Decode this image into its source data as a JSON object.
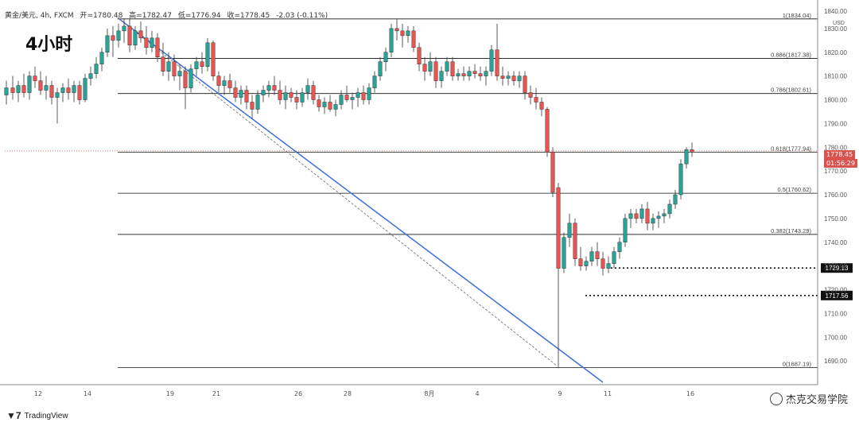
{
  "header": {
    "symbol": "黄金/美元, 4h, FXCM",
    "open": "开=1780.48",
    "high": "高=1782.47",
    "low": "低=1776.94",
    "close": "收=1778.45",
    "change": "-2.03 (-0.11%)"
  },
  "timeframe_label": "4小时",
  "currency": "USD",
  "logo_text": "TradingView",
  "watermark_text": "杰克交易学院",
  "current_price": {
    "value": "1778.45",
    "countdown": "01:56:29",
    "color": "#d9534f"
  },
  "chart_data": {
    "type": "candlestick",
    "ylim": [
      1680,
      1840
    ],
    "y_ticks": [
      1690,
      1700,
      1710,
      1720,
      1730,
      1740,
      1750,
      1760,
      1770,
      1780,
      1790,
      1800,
      1810,
      1820,
      1830
    ],
    "y_tick_labels_top": [
      "1840.00"
    ],
    "x_tick_labels": [
      {
        "label": "12",
        "pos": 48
      },
      {
        "label": "14",
        "pos": 110
      },
      {
        "label": "19",
        "pos": 214
      },
      {
        "label": "21",
        "pos": 272
      },
      {
        "label": "26",
        "pos": 375
      },
      {
        "label": "28",
        "pos": 437
      },
      {
        "label": "8月",
        "pos": 540
      },
      {
        "label": "4",
        "pos": 600
      },
      {
        "label": "9",
        "pos": 704
      },
      {
        "label": "11",
        "pos": 764
      },
      {
        "label": "16",
        "pos": 868
      }
    ],
    "fib_levels": [
      {
        "label": "1(1834.04)",
        "value": 1834.04
      },
      {
        "label": "0.886(1817.38)",
        "value": 1817.38
      },
      {
        "label": "0.786(1802.61)",
        "value": 1802.61
      },
      {
        "label": "0.618(1777.94)",
        "value": 1777.94
      },
      {
        "label": "0.5(1760.62)",
        "value": 1760.62
      },
      {
        "label": "0.382(1743.29)",
        "value": 1743.29
      },
      {
        "label": "0(1687.19)",
        "value": 1687.19
      }
    ],
    "support_levels": [
      {
        "label": "1729.13",
        "value": 1729.13
      },
      {
        "label": "1717.56",
        "value": 1717.56
      }
    ],
    "trendline": {
      "from": [
        1834.5,
        148
      ],
      "to": [
        1681,
        758
      ]
    },
    "dashed_trendline": {
      "from": [
        1834.5,
        148
      ],
      "to": [
        1688,
        700
      ]
    },
    "colors": {
      "up": "#26a69a",
      "down": "#ef5350",
      "trend": "#3b6fd8",
      "support": "#111111"
    },
    "candles": [
      [
        8,
        1802,
        1808,
        1798,
        1805
      ],
      [
        16,
        1805,
        1810,
        1800,
        1803
      ],
      [
        23,
        1803,
        1808,
        1799,
        1806
      ],
      [
        30,
        1806,
        1811,
        1801,
        1803
      ],
      [
        37,
        1803,
        1812,
        1800,
        1810
      ],
      [
        44,
        1810,
        1814,
        1805,
        1808
      ],
      [
        51,
        1808,
        1812,
        1802,
        1804
      ],
      [
        58,
        1804,
        1810,
        1800,
        1806
      ],
      [
        65,
        1806,
        1808,
        1798,
        1801
      ],
      [
        72,
        1801,
        1805,
        1790,
        1803
      ],
      [
        79,
        1803,
        1807,
        1799,
        1805
      ],
      [
        86,
        1805,
        1809,
        1800,
        1803
      ],
      [
        93,
        1803,
        1808,
        1799,
        1806
      ],
      [
        100,
        1806,
        1808,
        1798,
        1800
      ],
      [
        107,
        1800,
        1811,
        1799,
        1809
      ],
      [
        114,
        1809,
        1814,
        1806,
        1811
      ],
      [
        121,
        1811,
        1818,
        1809,
        1815
      ],
      [
        128,
        1815,
        1822,
        1812,
        1820
      ],
      [
        135,
        1820,
        1830,
        1818,
        1827
      ],
      [
        142,
        1827,
        1831,
        1818,
        1825
      ],
      [
        149,
        1825,
        1832,
        1822,
        1829
      ],
      [
        156,
        1829,
        1834,
        1824,
        1831
      ],
      [
        163,
        1831,
        1834,
        1820,
        1823
      ],
      [
        170,
        1823,
        1831,
        1821,
        1829
      ],
      [
        177,
        1829,
        1833,
        1824,
        1826
      ],
      [
        184,
        1826,
        1831,
        1819,
        1822
      ],
      [
        191,
        1822,
        1829,
        1820,
        1826
      ],
      [
        198,
        1826,
        1828,
        1816,
        1818
      ],
      [
        205,
        1818,
        1824,
        1810,
        1812
      ],
      [
        212,
        1812,
        1820,
        1808,
        1816
      ],
      [
        219,
        1816,
        1819,
        1808,
        1810
      ],
      [
        226,
        1810,
        1815,
        1804,
        1812
      ],
      [
        233,
        1812,
        1814,
        1796,
        1805
      ],
      [
        240,
        1805,
        1815,
        1803,
        1813
      ],
      [
        247,
        1813,
        1818,
        1810,
        1816
      ],
      [
        254,
        1816,
        1820,
        1811,
        1814
      ],
      [
        261,
        1814,
        1826,
        1812,
        1824
      ],
      [
        268,
        1824,
        1825,
        1808,
        1810
      ],
      [
        275,
        1810,
        1812,
        1803,
        1806
      ],
      [
        282,
        1806,
        1810,
        1802,
        1808
      ],
      [
        289,
        1808,
        1811,
        1803,
        1805
      ],
      [
        296,
        1805,
        1808,
        1799,
        1801
      ],
      [
        303,
        1801,
        1806,
        1798,
        1804
      ],
      [
        310,
        1804,
        1806,
        1796,
        1799
      ],
      [
        317,
        1799,
        1802,
        1792,
        1796
      ],
      [
        324,
        1796,
        1804,
        1794,
        1802
      ],
      [
        331,
        1802,
        1806,
        1799,
        1804
      ],
      [
        338,
        1804,
        1808,
        1801,
        1806
      ],
      [
        345,
        1806,
        1810,
        1802,
        1804
      ],
      [
        352,
        1804,
        1808,
        1798,
        1800
      ],
      [
        359,
        1800,
        1806,
        1796,
        1803
      ],
      [
        366,
        1803,
        1805,
        1799,
        1801
      ],
      [
        373,
        1801,
        1804,
        1796,
        1799
      ],
      [
        380,
        1799,
        1805,
        1797,
        1803
      ],
      [
        387,
        1803,
        1809,
        1800,
        1806
      ],
      [
        394,
        1806,
        1808,
        1798,
        1800
      ],
      [
        401,
        1800,
        1802,
        1795,
        1797
      ],
      [
        408,
        1797,
        1801,
        1794,
        1799
      ],
      [
        415,
        1799,
        1802,
        1795,
        1796
      ],
      [
        422,
        1796,
        1800,
        1793,
        1798
      ],
      [
        429,
        1798,
        1804,
        1796,
        1802
      ],
      [
        436,
        1802,
        1806,
        1799,
        1800
      ],
      [
        443,
        1800,
        1803,
        1796,
        1801
      ],
      [
        450,
        1801,
        1805,
        1797,
        1803
      ],
      [
        457,
        1803,
        1806,
        1798,
        1800
      ],
      [
        464,
        1800,
        1807,
        1798,
        1805
      ],
      [
        471,
        1805,
        1812,
        1803,
        1810
      ],
      [
        478,
        1810,
        1818,
        1808,
        1816
      ],
      [
        485,
        1816,
        1822,
        1812,
        1820
      ],
      [
        492,
        1820,
        1832,
        1818,
        1830
      ],
      [
        499,
        1830,
        1834,
        1825,
        1829
      ],
      [
        506,
        1829,
        1832,
        1822,
        1827
      ],
      [
        513,
        1827,
        1831,
        1824,
        1829
      ],
      [
        520,
        1829,
        1831,
        1820,
        1822
      ],
      [
        527,
        1822,
        1824,
        1812,
        1815
      ],
      [
        534,
        1815,
        1818,
        1808,
        1812
      ],
      [
        541,
        1812,
        1820,
        1810,
        1816
      ],
      [
        548,
        1816,
        1818,
        1805,
        1808
      ],
      [
        555,
        1808,
        1814,
        1805,
        1812
      ],
      [
        562,
        1812,
        1818,
        1810,
        1816
      ],
      [
        569,
        1816,
        1818,
        1808,
        1810
      ],
      [
        576,
        1810,
        1813,
        1808,
        1811
      ],
      [
        583,
        1811,
        1814,
        1808,
        1810
      ],
      [
        590,
        1810,
        1814,
        1808,
        1812
      ],
      [
        597,
        1812,
        1815,
        1809,
        1811
      ],
      [
        604,
        1811,
        1814,
        1808,
        1810
      ],
      [
        611,
        1810,
        1814,
        1806,
        1812
      ],
      [
        618,
        1812,
        1823,
        1810,
        1821
      ],
      [
        625,
        1821,
        1832,
        1808,
        1810
      ],
      [
        632,
        1810,
        1814,
        1806,
        1809
      ],
      [
        639,
        1809,
        1812,
        1806,
        1810
      ],
      [
        646,
        1810,
        1812,
        1806,
        1808
      ],
      [
        653,
        1808,
        1812,
        1805,
        1810
      ],
      [
        660,
        1810,
        1812,
        1800,
        1803
      ],
      [
        667,
        1803,
        1806,
        1798,
        1801
      ],
      [
        674,
        1801,
        1805,
        1796,
        1799
      ],
      [
        681,
        1799,
        1801,
        1793,
        1796
      ],
      [
        688,
        1796,
        1797,
        1776,
        1778
      ],
      [
        695,
        1778,
        1780,
        1759,
        1761
      ],
      [
        702,
        1763,
        1765,
        1687,
        1729
      ],
      [
        709,
        1729,
        1744,
        1727,
        1742
      ],
      [
        716,
        1742,
        1752,
        1738,
        1748
      ],
      [
        723,
        1748,
        1750,
        1730,
        1733
      ],
      [
        730,
        1733,
        1738,
        1728,
        1730
      ],
      [
        737,
        1730,
        1734,
        1728,
        1732
      ],
      [
        744,
        1732,
        1738,
        1730,
        1736
      ],
      [
        751,
        1736,
        1740,
        1730,
        1733
      ],
      [
        758,
        1733,
        1736,
        1726,
        1729
      ],
      [
        765,
        1729,
        1734,
        1727,
        1731
      ],
      [
        772,
        1731,
        1738,
        1729,
        1736
      ],
      [
        779,
        1736,
        1742,
        1733,
        1740
      ],
      [
        786,
        1740,
        1752,
        1738,
        1750
      ],
      [
        793,
        1750,
        1754,
        1746,
        1752
      ],
      [
        800,
        1752,
        1754,
        1748,
        1750
      ],
      [
        807,
        1750,
        1756,
        1748,
        1754
      ],
      [
        814,
        1754,
        1757,
        1745,
        1748
      ],
      [
        821,
        1748,
        1752,
        1745,
        1750
      ],
      [
        828,
        1750,
        1753,
        1746,
        1751
      ],
      [
        835,
        1751,
        1754,
        1748,
        1752
      ],
      [
        842,
        1752,
        1758,
        1750,
        1756
      ],
      [
        849,
        1756,
        1762,
        1754,
        1760
      ],
      [
        856,
        1760,
        1775,
        1758,
        1773
      ],
      [
        863,
        1773,
        1780,
        1771,
        1779
      ],
      [
        870,
        1779,
        1782,
        1776,
        1778
      ]
    ]
  }
}
